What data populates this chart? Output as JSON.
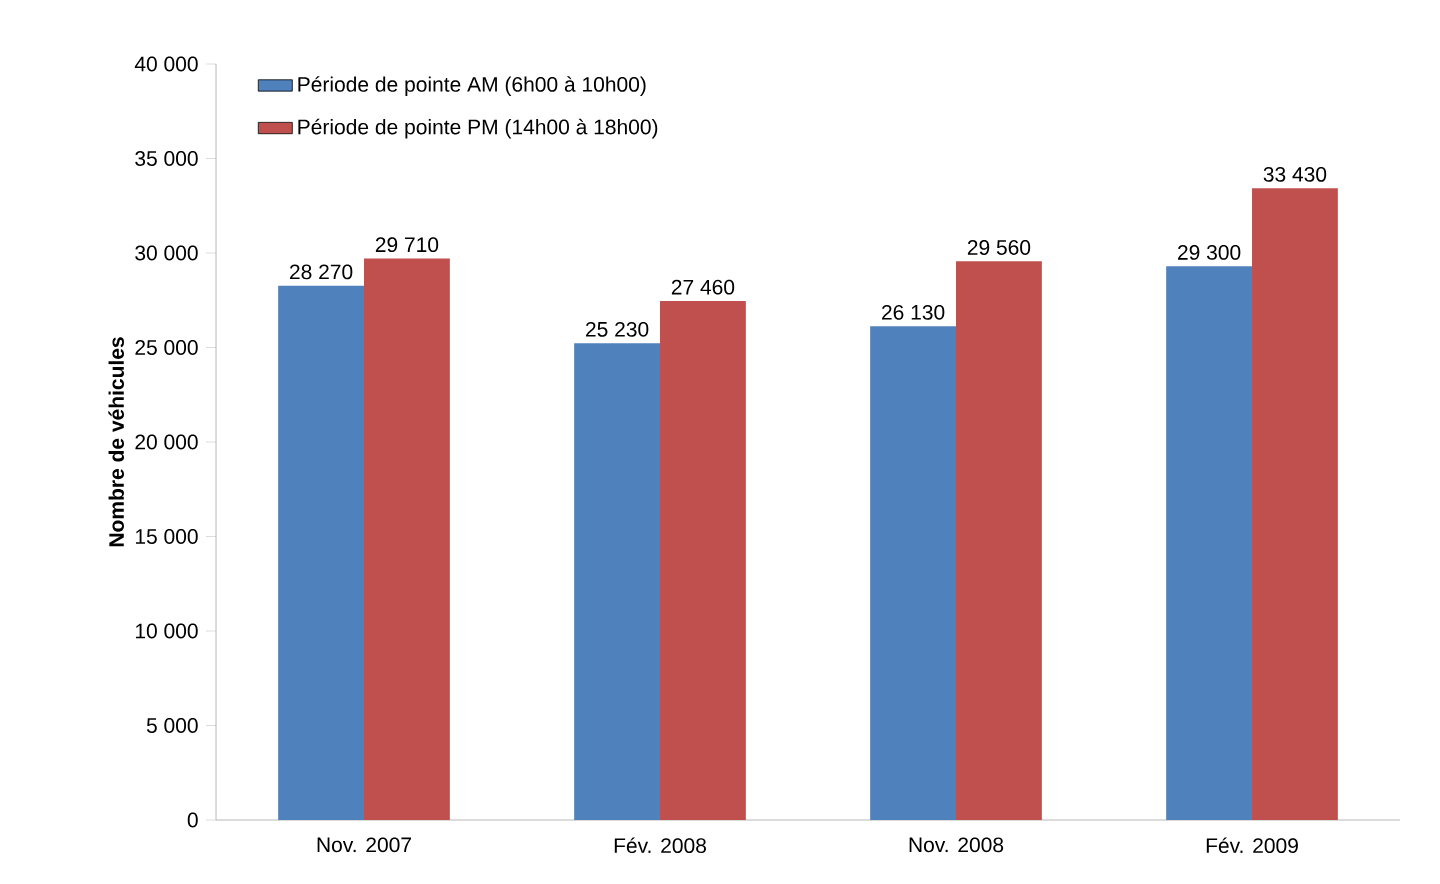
{
  "chart_data": {
    "type": "bar",
    "categories": [
      "Nov. 2007",
      "Fév. 2008",
      "Nov. 2008",
      "Fév. 2009"
    ],
    "ylabel": "Nombre de véhicules",
    "ylim": [
      0,
      40000
    ],
    "yticks": [
      {
        "value": 0,
        "label": "0"
      },
      {
        "value": 5000,
        "label": "5 000"
      },
      {
        "value": 10000,
        "label": "10 000"
      },
      {
        "value": 15000,
        "label": "15 000"
      },
      {
        "value": 20000,
        "label": "20 000"
      },
      {
        "value": 25000,
        "label": "25 000"
      },
      {
        "value": 30000,
        "label": "30 000"
      },
      {
        "value": 35000,
        "label": "35 000"
      },
      {
        "value": 40000,
        "label": "40 000"
      }
    ],
    "legend": "top left",
    "series": [
      {
        "name": "Période de pointe AM (6h00 à 10h00)",
        "color": "#4f81bd",
        "values": [
          28270,
          25230,
          26130,
          29300
        ],
        "value_labels": [
          "28 270",
          "25 230",
          "26 130",
          "29 300"
        ]
      },
      {
        "name": "Période de pointe PM (14h00 à 18h00)",
        "color": "#c0504d",
        "values": [
          29710,
          27460,
          29560,
          33430
        ],
        "value_labels": [
          "29 710",
          "27 460",
          "29 560",
          "33 430"
        ]
      }
    ]
  }
}
